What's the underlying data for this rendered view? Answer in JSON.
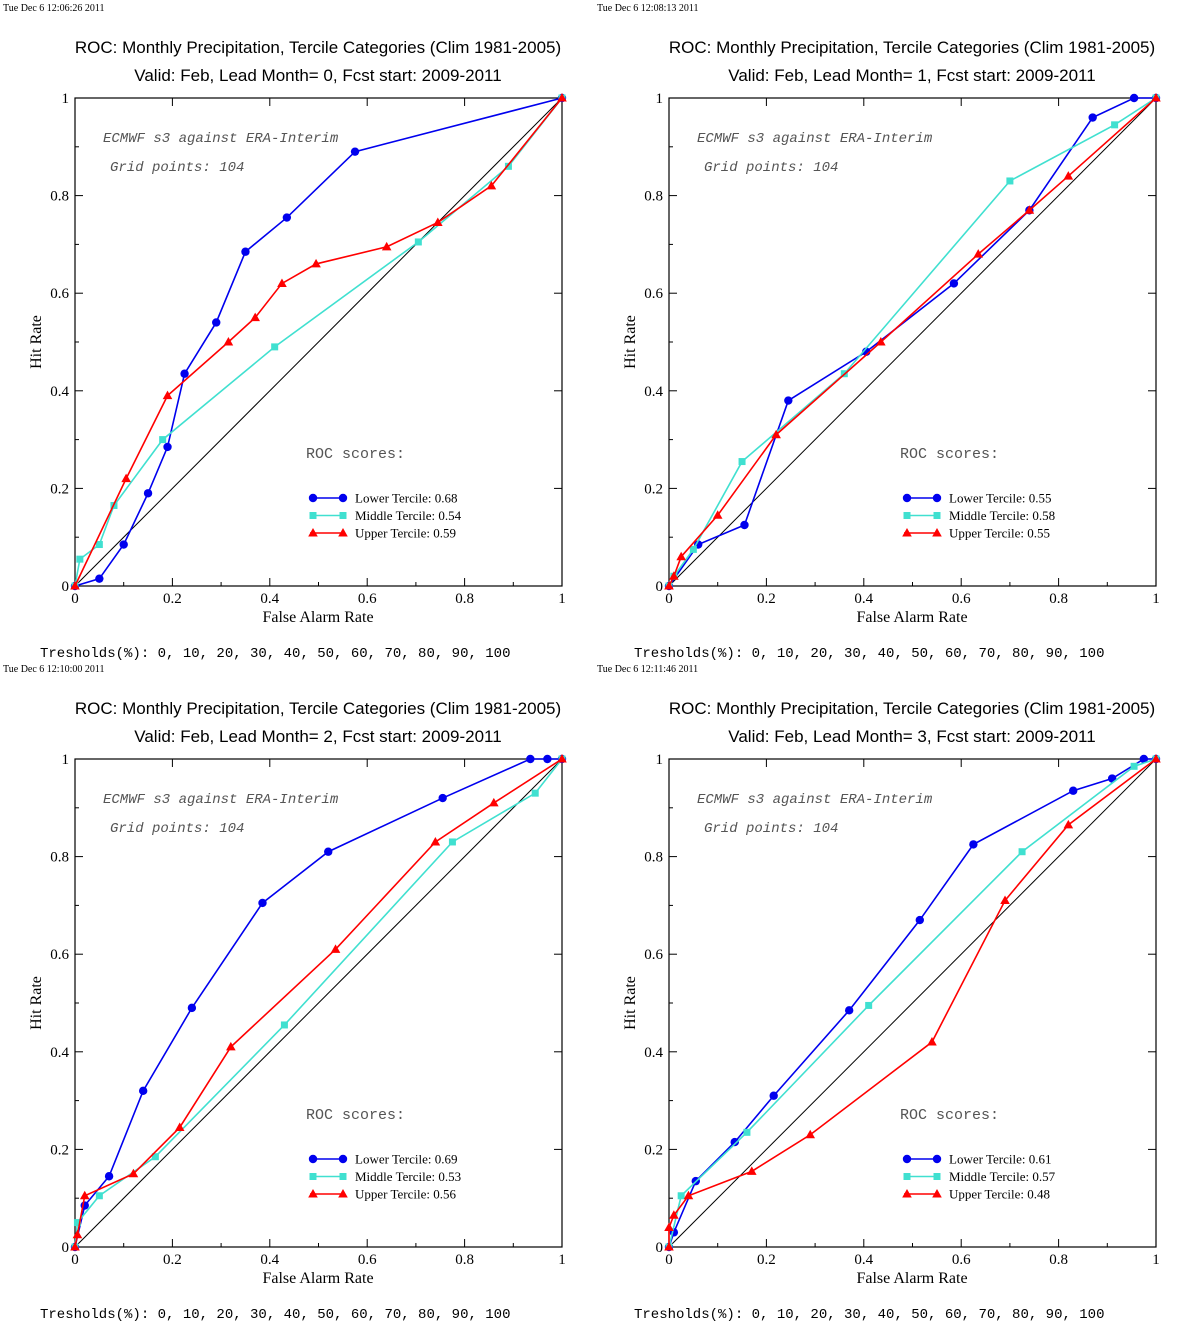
{
  "footer_label": "Tresholds(%): 0, 10, 20, 30, 40, 50, 60, 70, 80, 90, 100",
  "colors": {
    "lower": "#0000ee",
    "middle": "#40e0d0",
    "upper": "#ff0000",
    "diagonal": "#000000"
  },
  "chart_data": [
    {
      "type": "line",
      "timestamp": "Tue Dec  6 12:06:26 2011",
      "title": "ROC: Monthly Precipitation, Tercile Categories (Clim 1981-2005)",
      "subtitle": "Valid: Feb, Lead Month= 0, Fcst start: 2009-2011",
      "xlabel": "False Alarm Rate",
      "ylabel": "Hit Rate",
      "xlim": [
        0,
        1
      ],
      "ylim": [
        0,
        1
      ],
      "xticks": [
        "0",
        "0.2",
        "0.4",
        "0.6",
        "0.8",
        "1"
      ],
      "yticks": [
        "0",
        "0.2",
        "0.4",
        "0.6",
        "0.8",
        "1"
      ],
      "annotations": [
        "ECMWF s3 against ERA-Interim",
        "Grid points:  104"
      ],
      "scores_title": "ROC scores:",
      "series": [
        {
          "name": "Lower Tercile: 0.68",
          "marker": "circle",
          "x": [
            0,
            0.05,
            0.1,
            0.15,
            0.19,
            0.225,
            0.29,
            0.35,
            0.435,
            0.575,
            1
          ],
          "y": [
            0,
            0.015,
            0.085,
            0.19,
            0.285,
            0.435,
            0.54,
            0.685,
            0.755,
            0.89,
            1
          ]
        },
        {
          "name": "Middle Tercile: 0.54",
          "marker": "square",
          "x": [
            0,
            0.01,
            0.05,
            0.08,
            0.18,
            0.41,
            0.705,
            0.89,
            1
          ],
          "y": [
            0,
            0.055,
            0.085,
            0.165,
            0.3,
            0.49,
            0.705,
            0.86,
            1
          ]
        },
        {
          "name": "Upper Tercile: 0.59",
          "marker": "triangle",
          "x": [
            0,
            0.105,
            0.19,
            0.315,
            0.37,
            0.425,
            0.495,
            0.64,
            0.745,
            0.855,
            1
          ],
          "y": [
            0,
            0.22,
            0.39,
            0.5,
            0.55,
            0.62,
            0.66,
            0.695,
            0.745,
            0.82,
            1
          ]
        }
      ]
    },
    {
      "type": "line",
      "timestamp": "Tue Dec  6 12:08:13 2011",
      "title": "ROC: Monthly Precipitation, Tercile Categories (Clim 1981-2005)",
      "subtitle": "Valid: Feb, Lead Month= 1, Fcst start: 2009-2011",
      "xlabel": "False Alarm Rate",
      "ylabel": "Hit Rate",
      "xlim": [
        0,
        1
      ],
      "ylim": [
        0,
        1
      ],
      "xticks": [
        "0",
        "0.2",
        "0.4",
        "0.6",
        "0.8",
        "1"
      ],
      "yticks": [
        "0",
        "0.2",
        "0.4",
        "0.6",
        "0.8",
        "1"
      ],
      "annotations": [
        "ECMWF s3 against ERA-Interim",
        "Grid points:  104"
      ],
      "scores_title": "ROC scores:",
      "series": [
        {
          "name": "Lower Tercile: 0.55",
          "marker": "circle",
          "x": [
            0,
            0.06,
            0.155,
            0.245,
            0.405,
            0.585,
            0.74,
            0.87,
            0.955,
            1
          ],
          "y": [
            0,
            0.085,
            0.125,
            0.38,
            0.48,
            0.62,
            0.77,
            0.96,
            1,
            1
          ]
        },
        {
          "name": "Middle Tercile: 0.58",
          "marker": "square",
          "x": [
            0,
            0.01,
            0.05,
            0.15,
            0.36,
            0.7,
            0.915,
            1
          ],
          "y": [
            0,
            0.02,
            0.075,
            0.255,
            0.435,
            0.83,
            0.945,
            1
          ]
        },
        {
          "name": "Upper Tercile: 0.55",
          "marker": "triangle",
          "x": [
            0,
            0.01,
            0.025,
            0.1,
            0.22,
            0.435,
            0.635,
            0.74,
            0.82,
            1
          ],
          "y": [
            0,
            0.02,
            0.06,
            0.145,
            0.31,
            0.5,
            0.68,
            0.77,
            0.84,
            1
          ]
        }
      ]
    },
    {
      "type": "line",
      "timestamp": "Tue Dec  6 12:10:00 2011",
      "title": "ROC: Monthly Precipitation, Tercile Categories (Clim 1981-2005)",
      "subtitle": "Valid: Feb, Lead Month= 2, Fcst start: 2009-2011",
      "xlabel": "False Alarm Rate",
      "ylabel": "Hit Rate",
      "xlim": [
        0,
        1
      ],
      "ylim": [
        0,
        1
      ],
      "xticks": [
        "0",
        "0.2",
        "0.4",
        "0.6",
        "0.8",
        "1"
      ],
      "yticks": [
        "0",
        "0.2",
        "0.4",
        "0.6",
        "0.8",
        "1"
      ],
      "annotations": [
        "ECMWF s3 against ERA-Interim",
        "Grid points:  104"
      ],
      "scores_title": "ROC scores:",
      "series": [
        {
          "name": "Lower Tercile: 0.69",
          "marker": "circle",
          "x": [
            0,
            0.02,
            0.07,
            0.14,
            0.24,
            0.385,
            0.52,
            0.755,
            0.935,
            0.97,
            1
          ],
          "y": [
            0,
            0.085,
            0.145,
            0.32,
            0.49,
            0.705,
            0.81,
            0.92,
            1,
            1,
            1
          ]
        },
        {
          "name": "Middle Tercile: 0.53",
          "marker": "square",
          "x": [
            0,
            0.005,
            0.05,
            0.165,
            0.43,
            0.775,
            0.945,
            1
          ],
          "y": [
            0,
            0.05,
            0.105,
            0.185,
            0.455,
            0.83,
            0.93,
            1
          ]
        },
        {
          "name": "Upper Tercile: 0.56",
          "marker": "triangle",
          "x": [
            0,
            0.005,
            0.02,
            0.12,
            0.215,
            0.32,
            0.535,
            0.74,
            0.86,
            1
          ],
          "y": [
            0,
            0.025,
            0.105,
            0.15,
            0.245,
            0.41,
            0.61,
            0.83,
            0.91,
            1
          ]
        }
      ]
    },
    {
      "type": "line",
      "timestamp": "Tue Dec  6 12:11:46 2011",
      "title": "ROC: Monthly Precipitation, Tercile Categories (Clim 1981-2005)",
      "subtitle": "Valid: Feb, Lead Month= 3, Fcst start: 2009-2011",
      "xlabel": "False Alarm Rate",
      "ylabel": "Hit Rate",
      "xlim": [
        0,
        1
      ],
      "ylim": [
        0,
        1
      ],
      "xticks": [
        "0",
        "0.2",
        "0.4",
        "0.6",
        "0.8",
        "1"
      ],
      "yticks": [
        "0",
        "0.2",
        "0.4",
        "0.6",
        "0.8",
        "1"
      ],
      "annotations": [
        "ECMWF s3 against ERA-Interim",
        "Grid points:  104"
      ],
      "scores_title": "ROC scores:",
      "series": [
        {
          "name": "Lower Tercile: 0.61",
          "marker": "circle",
          "x": [
            0,
            0.01,
            0.055,
            0.135,
            0.215,
            0.37,
            0.515,
            0.625,
            0.83,
            0.91,
            0.975,
            1
          ],
          "y": [
            0,
            0.03,
            0.135,
            0.215,
            0.31,
            0.485,
            0.67,
            0.825,
            0.935,
            0.96,
            1,
            1
          ]
        },
        {
          "name": "Middle Tercile: 0.57",
          "marker": "square",
          "x": [
            0,
            0.025,
            0.16,
            0.41,
            0.725,
            0.955,
            1
          ],
          "y": [
            0,
            0.105,
            0.235,
            0.495,
            0.81,
            0.985,
            1
          ]
        },
        {
          "name": "Upper Tercile: 0.48",
          "marker": "triangle",
          "x": [
            0,
            0.0,
            0.01,
            0.04,
            0.17,
            0.29,
            0.54,
            0.69,
            0.82,
            1
          ],
          "y": [
            0,
            0.04,
            0.065,
            0.105,
            0.155,
            0.23,
            0.42,
            0.71,
            0.865,
            1
          ]
        }
      ]
    }
  ]
}
